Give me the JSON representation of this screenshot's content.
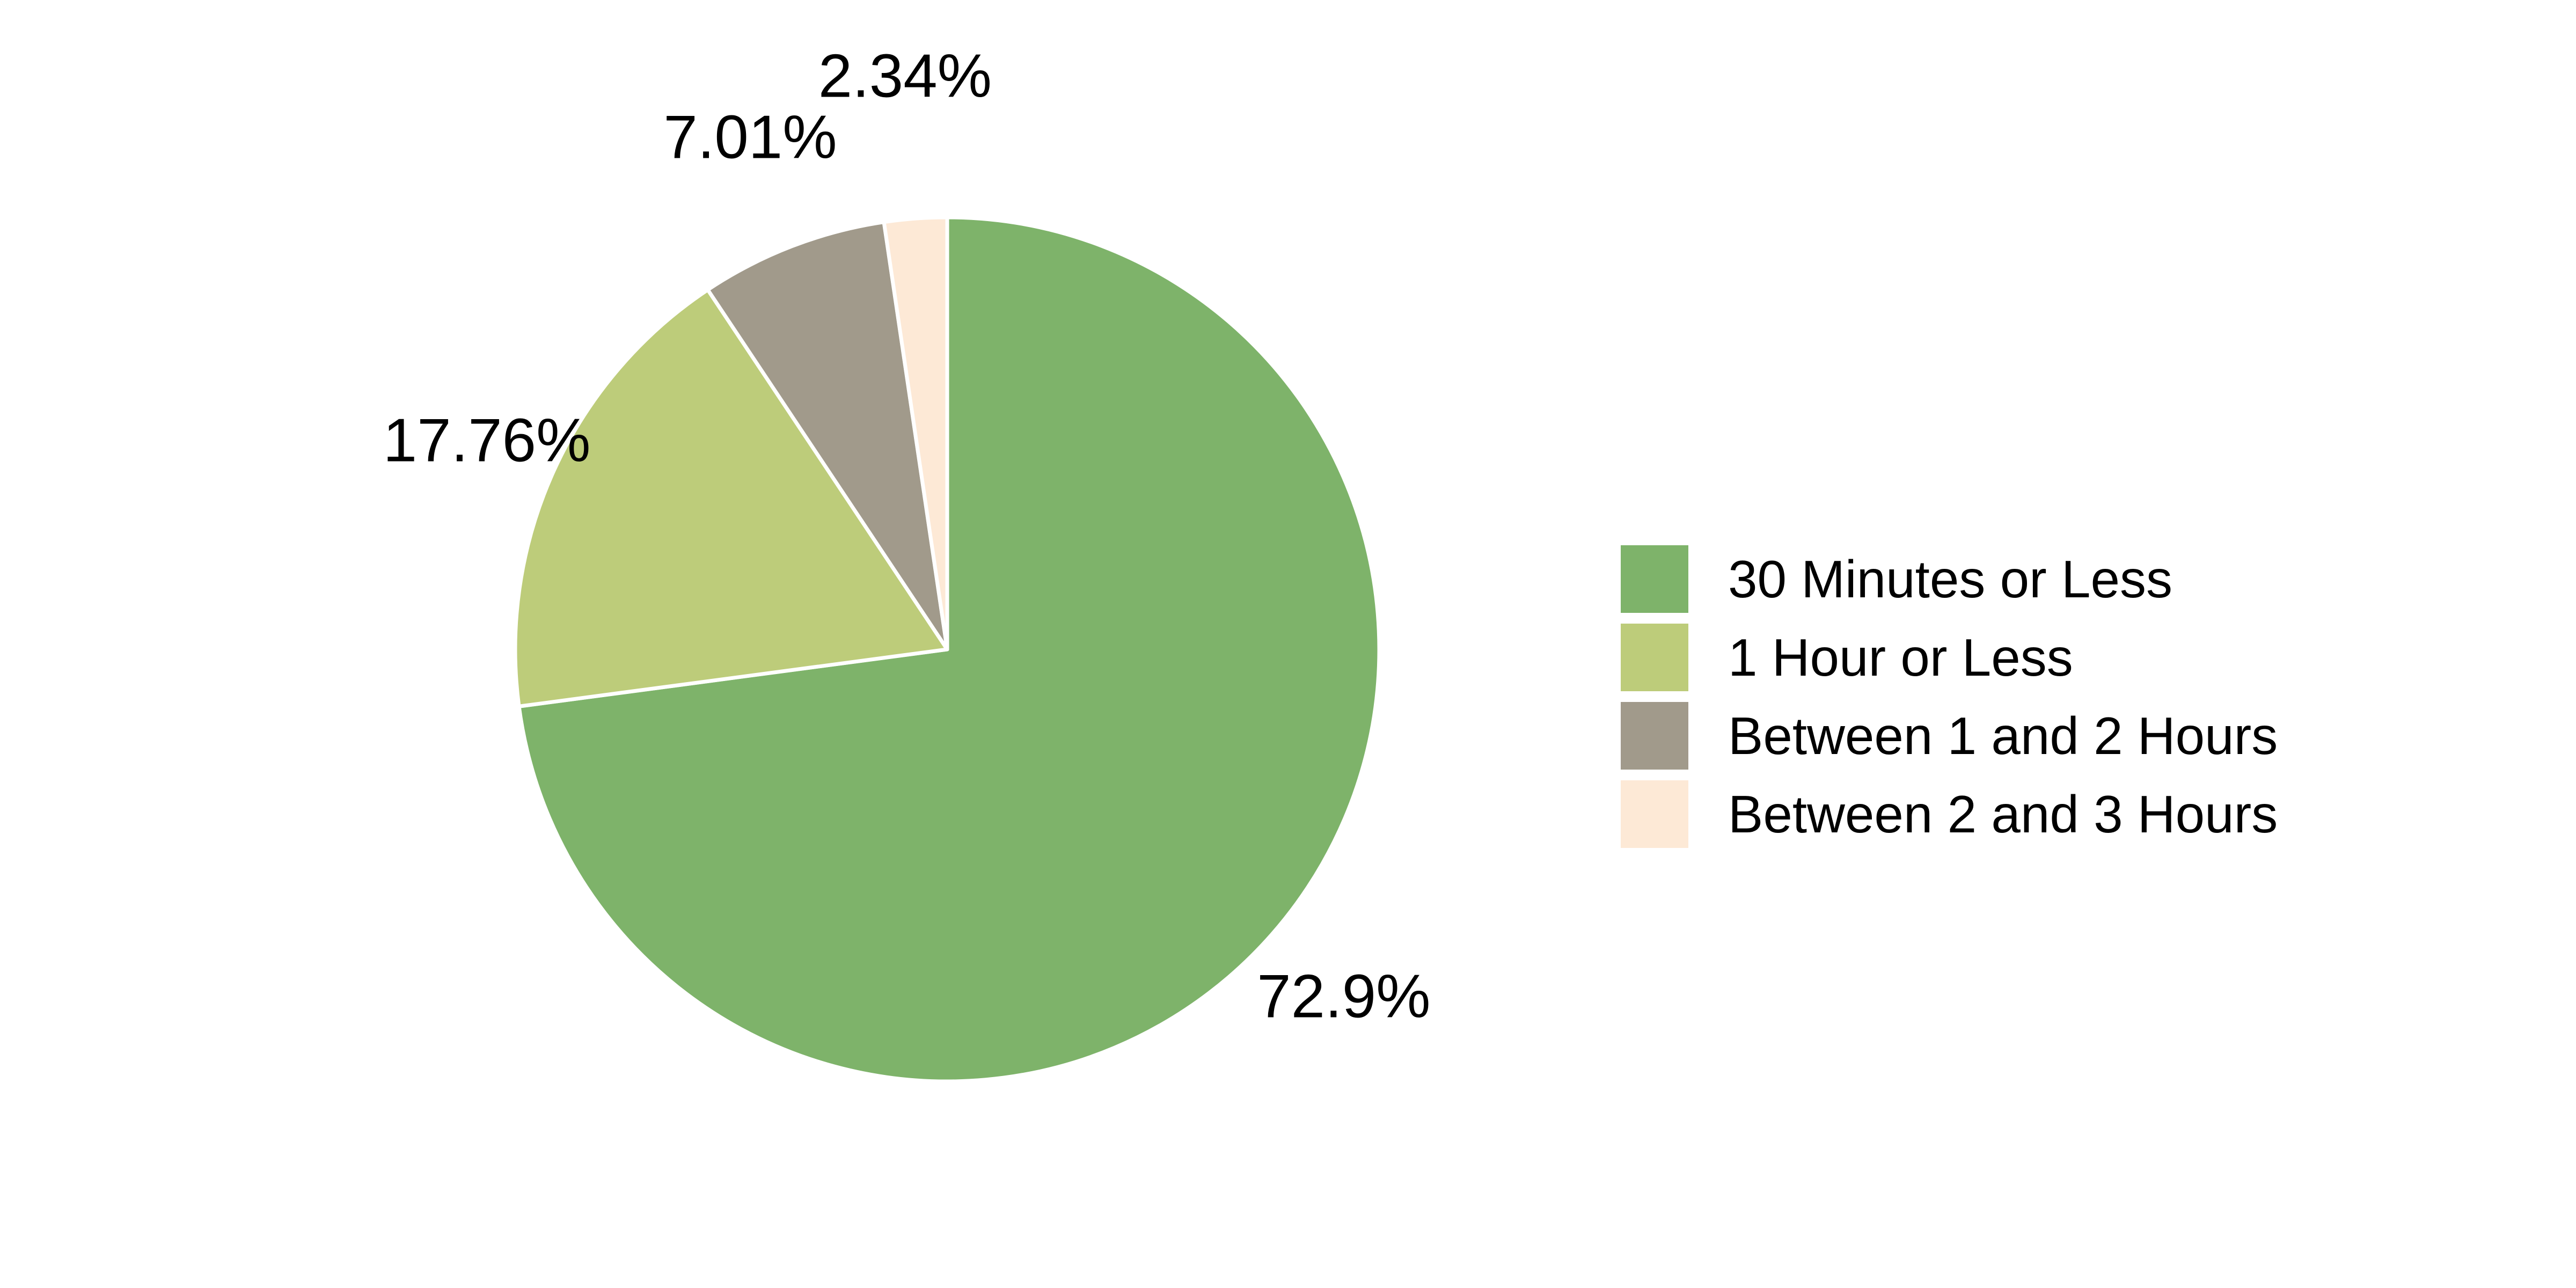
{
  "chart_data": {
    "type": "pie",
    "start_angle_deg": 90,
    "direction": "clockwise",
    "slices": [
      {
        "label": "30 Minutes or Less",
        "value": 72.9,
        "value_label": "72.9%",
        "color": "#7eb36a"
      },
      {
        "label": "1 Hour or Less",
        "value": 17.76,
        "value_label": "17.76%",
        "color": "#bdcc7a"
      },
      {
        "label": "Between 1 and 2 Hours",
        "value": 7.01,
        "value_label": "7.01%",
        "color": "#a19a8b"
      },
      {
        "label": "Between 2 and 3 Hours",
        "value": 2.34,
        "value_label": "2.34%",
        "color": "#fde9d6"
      }
    ],
    "legend_position": "right"
  }
}
